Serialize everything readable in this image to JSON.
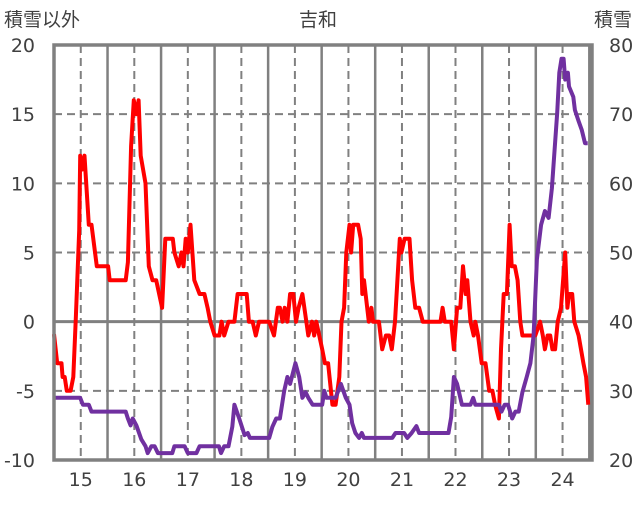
{
  "chart_data": {
    "type": "line",
    "title": "吉和",
    "ylabel_left": "積雪以外",
    "ylabel_right": "積雪",
    "x_ticks": [
      "15",
      "16",
      "17",
      "18",
      "19",
      "20",
      "21",
      "22",
      "23",
      "24"
    ],
    "x_tick_values": [
      15,
      16,
      17,
      18,
      19,
      20,
      21,
      22,
      23,
      24
    ],
    "xlim": [
      14.5,
      24.55
    ],
    "ylim_left": [
      -10,
      20
    ],
    "ylim_right": [
      20,
      80
    ],
    "y_ticks_left": [
      "-10",
      "-5",
      "0",
      "5",
      "10",
      "15",
      "20"
    ],
    "y_tick_values_left": [
      -10,
      -5,
      0,
      5,
      10,
      15,
      20
    ],
    "y_ticks_right": [
      "20",
      "30",
      "40",
      "50",
      "60",
      "70",
      "80"
    ],
    "y_tick_values_right": [
      20,
      30,
      40,
      50,
      60,
      70,
      80
    ],
    "grid": true,
    "series": [
      {
        "name": "積雪以外",
        "axis": "left",
        "color": "#ff0000",
        "points": [
          [
            14.5,
            -0.9
          ],
          [
            14.56,
            -3
          ],
          [
            14.64,
            -3
          ],
          [
            14.66,
            -4
          ],
          [
            14.7,
            -4
          ],
          [
            14.74,
            -5
          ],
          [
            14.81,
            -5
          ],
          [
            14.86,
            -4
          ],
          [
            14.91,
            0.4
          ],
          [
            14.97,
            6.6
          ],
          [
            14.99,
            12
          ],
          [
            15.03,
            11
          ],
          [
            15.07,
            12
          ],
          [
            15.15,
            7
          ],
          [
            15.2,
            7
          ],
          [
            15.3,
            4
          ],
          [
            15.51,
            4
          ],
          [
            15.54,
            3
          ],
          [
            15.84,
            3
          ],
          [
            15.88,
            4.3
          ],
          [
            15.94,
            12.7
          ],
          [
            15.99,
            16
          ],
          [
            16.04,
            15
          ],
          [
            16.08,
            16
          ],
          [
            16.12,
            12
          ],
          [
            16.21,
            10
          ],
          [
            16.27,
            4
          ],
          [
            16.34,
            3
          ],
          [
            16.41,
            3
          ],
          [
            16.52,
            1
          ],
          [
            16.58,
            6
          ],
          [
            16.72,
            6
          ],
          [
            16.75,
            5
          ],
          [
            16.83,
            4
          ],
          [
            16.88,
            5
          ],
          [
            16.92,
            4
          ],
          [
            16.96,
            6
          ],
          [
            17.0,
            5
          ],
          [
            17.05,
            7
          ],
          [
            17.12,
            3
          ],
          [
            17.22,
            2
          ],
          [
            17.31,
            2
          ],
          [
            17.37,
            1
          ],
          [
            17.42,
            0
          ],
          [
            17.5,
            -1
          ],
          [
            17.59,
            -1
          ],
          [
            17.63,
            0
          ],
          [
            17.68,
            -1
          ],
          [
            17.76,
            0
          ],
          [
            17.87,
            0
          ],
          [
            17.93,
            2
          ],
          [
            18.1,
            2
          ],
          [
            18.14,
            0
          ],
          [
            18.21,
            0
          ],
          [
            18.27,
            -1
          ],
          [
            18.33,
            0
          ],
          [
            18.52,
            0
          ],
          [
            18.61,
            -1
          ],
          [
            18.68,
            1
          ],
          [
            18.72,
            1
          ],
          [
            18.77,
            0
          ],
          [
            18.81,
            1
          ],
          [
            18.86,
            0
          ],
          [
            18.91,
            2
          ],
          [
            18.97,
            2
          ],
          [
            19.02,
            0
          ],
          [
            19.07,
            1
          ],
          [
            19.14,
            2
          ],
          [
            19.25,
            -1
          ],
          [
            19.32,
            0
          ],
          [
            19.36,
            -1
          ],
          [
            19.4,
            0
          ],
          [
            19.51,
            -2
          ],
          [
            19.56,
            -3
          ],
          [
            19.62,
            -3
          ],
          [
            19.7,
            -6
          ],
          [
            19.76,
            -6
          ],
          [
            19.83,
            -4
          ],
          [
            19.87,
            0
          ],
          [
            19.92,
            1
          ],
          [
            19.96,
            5
          ],
          [
            20.02,
            7
          ],
          [
            20.05,
            5
          ],
          [
            20.09,
            7
          ],
          [
            20.18,
            7
          ],
          [
            20.23,
            6
          ],
          [
            20.26,
            2
          ],
          [
            20.29,
            3
          ],
          [
            20.38,
            0
          ],
          [
            20.43,
            1
          ],
          [
            20.46,
            0
          ],
          [
            20.57,
            0
          ],
          [
            20.63,
            -2
          ],
          [
            20.7,
            -1
          ],
          [
            20.76,
            -1
          ],
          [
            20.81,
            -2
          ],
          [
            20.87,
            0
          ],
          [
            20.96,
            6
          ],
          [
            20.99,
            5
          ],
          [
            21.05,
            6
          ],
          [
            21.14,
            6
          ],
          [
            21.19,
            3
          ],
          [
            21.25,
            1
          ],
          [
            21.32,
            1
          ],
          [
            21.39,
            0
          ],
          [
            21.72,
            0
          ],
          [
            21.76,
            1
          ],
          [
            21.8,
            0
          ],
          [
            21.92,
            0
          ],
          [
            21.97,
            -2
          ],
          [
            22.03,
            1
          ],
          [
            22.09,
            1
          ],
          [
            22.14,
            4
          ],
          [
            22.19,
            2
          ],
          [
            22.22,
            3
          ],
          [
            22.28,
            0
          ],
          [
            22.34,
            -1
          ],
          [
            22.37,
            0
          ],
          [
            22.42,
            -1
          ],
          [
            22.49,
            -3
          ],
          [
            22.56,
            -3
          ],
          [
            22.63,
            -5
          ],
          [
            22.69,
            -5
          ],
          [
            22.74,
            -6
          ],
          [
            22.81,
            -7
          ],
          [
            22.85,
            -2
          ],
          [
            22.9,
            2
          ],
          [
            22.96,
            2
          ],
          [
            23.01,
            7
          ],
          [
            23.05,
            4
          ],
          [
            23.11,
            4
          ],
          [
            23.16,
            3
          ],
          [
            23.21,
            0
          ],
          [
            23.25,
            -1
          ],
          [
            23.49,
            -1
          ],
          [
            23.58,
            0
          ],
          [
            23.63,
            -1
          ],
          [
            23.67,
            -2
          ],
          [
            23.72,
            -1
          ],
          [
            23.77,
            -1
          ],
          [
            23.81,
            -2
          ],
          [
            23.86,
            -2
          ],
          [
            23.91,
            0
          ],
          [
            23.97,
            1
          ],
          [
            24.05,
            5
          ],
          [
            24.09,
            1
          ],
          [
            24.12,
            2
          ],
          [
            24.18,
            2
          ],
          [
            24.22,
            0
          ],
          [
            24.3,
            -1
          ],
          [
            24.39,
            -3
          ],
          [
            24.44,
            -4
          ],
          [
            24.48,
            -6
          ]
        ]
      },
      {
        "name": "積雪",
        "axis": "right",
        "color": "#7030a0",
        "points": [
          [
            14.5,
            29
          ],
          [
            14.99,
            29
          ],
          [
            15.04,
            28
          ],
          [
            15.15,
            28
          ],
          [
            15.2,
            27
          ],
          [
            15.84,
            27
          ],
          [
            15.88,
            26
          ],
          [
            15.93,
            25
          ],
          [
            15.97,
            26
          ],
          [
            16.04,
            25
          ],
          [
            16.13,
            23
          ],
          [
            16.21,
            22
          ],
          [
            16.25,
            21
          ],
          [
            16.32,
            22
          ],
          [
            16.38,
            22
          ],
          [
            16.44,
            21
          ],
          [
            16.71,
            21
          ],
          [
            16.75,
            22
          ],
          [
            16.94,
            22
          ],
          [
            17.0,
            21
          ],
          [
            17.16,
            21
          ],
          [
            17.22,
            22
          ],
          [
            17.58,
            22
          ],
          [
            17.62,
            21
          ],
          [
            17.68,
            22
          ],
          [
            17.76,
            22
          ],
          [
            17.83,
            24.8
          ],
          [
            17.87,
            28
          ],
          [
            17.96,
            26
          ],
          [
            18.06,
            23.6
          ],
          [
            18.12,
            23.9
          ],
          [
            18.16,
            23.2
          ],
          [
            18.52,
            23.2
          ],
          [
            18.58,
            24.8
          ],
          [
            18.65,
            26
          ],
          [
            18.72,
            26
          ],
          [
            18.8,
            30
          ],
          [
            18.86,
            32
          ],
          [
            18.91,
            31
          ],
          [
            19.01,
            34
          ],
          [
            19.08,
            32
          ],
          [
            19.14,
            29
          ],
          [
            19.2,
            29.8
          ],
          [
            19.25,
            29
          ],
          [
            19.33,
            28
          ],
          [
            19.51,
            28
          ],
          [
            19.55,
            30
          ],
          [
            19.59,
            29
          ],
          [
            19.76,
            29
          ],
          [
            19.86,
            31
          ],
          [
            19.95,
            29
          ],
          [
            20.02,
            28
          ],
          [
            20.07,
            25.3
          ],
          [
            20.13,
            23.9
          ],
          [
            20.2,
            23.2
          ],
          [
            20.25,
            23.9
          ],
          [
            20.29,
            23.2
          ],
          [
            20.82,
            23.2
          ],
          [
            20.88,
            23.9
          ],
          [
            21.04,
            23.9
          ],
          [
            21.1,
            23.2
          ],
          [
            21.18,
            23.9
          ],
          [
            21.27,
            24.9
          ],
          [
            21.32,
            23.9
          ],
          [
            21.87,
            23.9
          ],
          [
            21.92,
            26.2
          ],
          [
            21.97,
            32
          ],
          [
            22.03,
            31
          ],
          [
            22.12,
            28
          ],
          [
            22.28,
            28
          ],
          [
            22.33,
            29
          ],
          [
            22.37,
            28
          ],
          [
            22.81,
            28
          ],
          [
            22.86,
            27
          ],
          [
            22.92,
            28
          ],
          [
            22.98,
            28
          ],
          [
            23.06,
            26
          ],
          [
            23.12,
            27
          ],
          [
            23.18,
            27
          ],
          [
            23.25,
            29.8
          ],
          [
            23.33,
            32
          ],
          [
            23.4,
            34
          ],
          [
            23.46,
            38
          ],
          [
            23.52,
            49
          ],
          [
            23.6,
            54
          ],
          [
            23.67,
            56
          ],
          [
            23.74,
            55
          ],
          [
            23.8,
            59.3
          ],
          [
            23.9,
            70.2
          ],
          [
            23.94,
            76
          ],
          [
            23.98,
            78
          ],
          [
            24.02,
            78
          ],
          [
            24.05,
            75
          ],
          [
            24.1,
            76
          ],
          [
            24.12,
            74
          ],
          [
            24.2,
            72.5
          ],
          [
            24.23,
            70.6
          ],
          [
            24.3,
            69
          ],
          [
            24.36,
            67.7
          ],
          [
            24.42,
            65.8
          ],
          [
            24.47,
            65.8
          ]
        ]
      }
    ]
  }
}
